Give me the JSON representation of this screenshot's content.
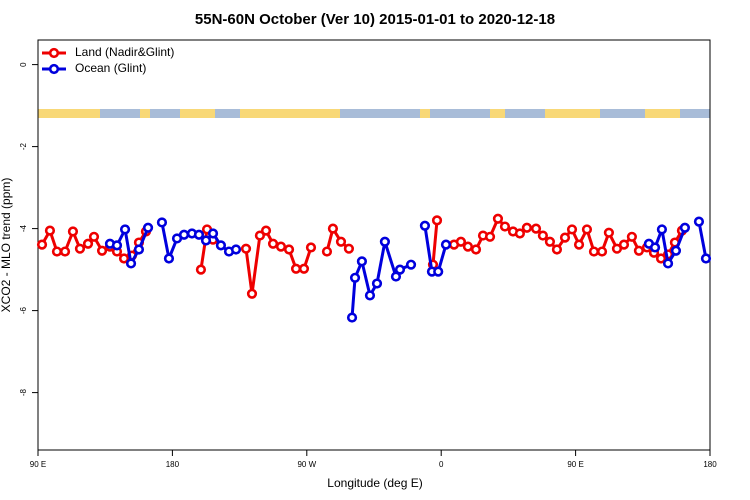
{
  "chart_data": {
    "type": "line",
    "title": "55N-60N October (Ver 10)   2015-01-01 to 2020-12-18",
    "x_label": "Longitude (deg E)",
    "y_label": "XCO2 - MLO trend (ppm)",
    "xlim": [
      90,
      540
    ],
    "ylim": [
      -9.4,
      0.6
    ],
    "xticks": [
      {
        "value": 90,
        "label": "90 E"
      },
      180,
      {
        "value": 270,
        "label": "90 W"
      },
      {
        "value": 360,
        "label": "0"
      },
      {
        "value": 450,
        "label": "90 E"
      },
      {
        "value": 540,
        "label": "180"
      }
    ],
    "yticks": [
      0,
      -2,
      -4,
      -6,
      -8
    ],
    "legend": "top-left",
    "series": [
      {
        "name": "Land (Nadir&Glint)",
        "color": "#ee0000",
        "x": [
          92.7,
          98.0,
          102.7,
          108.1,
          113.4,
          118.1,
          123.5,
          127.5,
          132.9,
          138.2,
          142.9,
          147.6,
          152.9,
          157.6,
          162.3,
          null,
          199.1,
          203.2,
          207.2,
          null,
          229.3,
          233.3,
          238.6,
          242.7,
          247.4,
          252.7,
          258.1,
          262.8,
          268.1,
          272.8,
          null,
          283.5,
          287.5,
          292.9,
          298.2,
          null,
          354.5,
          357.2,
          null,
          368.6,
          373.2,
          377.9,
          383.3,
          388.0,
          392.7,
          398.0,
          402.7,
          408.1,
          412.7,
          417.4,
          423.5,
          428.1,
          432.8,
          437.5,
          442.9,
          447.6,
          452.3,
          457.6,
          462.3,
          467.7,
          472.3,
          477.7,
          482.4,
          487.7,
          492.4,
          497.8,
          502.5,
          507.2,
          511.9,
          516.5,
          521.2
        ],
        "values": [
          -4.39,
          -4.05,
          -4.56,
          -4.56,
          -4.07,
          -4.49,
          -4.37,
          -4.2,
          -4.54,
          -4.44,
          -4.56,
          -4.73,
          -4.66,
          -4.34,
          -4.07,
          null,
          -5.0,
          -4.02,
          -4.27,
          null,
          -4.49,
          -5.59,
          -4.17,
          -4.05,
          -4.37,
          -4.44,
          -4.51,
          -4.98,
          -4.98,
          -4.46,
          null,
          -4.56,
          -4.0,
          -4.32,
          -4.49,
          null,
          -4.88,
          -3.8,
          null,
          -4.39,
          -4.32,
          -4.44,
          -4.51,
          -4.17,
          -4.2,
          -3.76,
          -3.95,
          -4.07,
          -4.12,
          -3.98,
          -4.0,
          -4.17,
          -4.32,
          -4.51,
          -4.22,
          -4.02,
          -4.39,
          -4.02,
          -4.56,
          -4.56,
          -4.1,
          -4.49,
          -4.39,
          -4.2,
          -4.54,
          -4.46,
          -4.59,
          -4.73,
          -4.63,
          -4.34,
          -4.05
        ]
      },
      {
        "name": "Ocean (Glint)",
        "color": "#0000dd",
        "x": [
          138.2,
          142.9,
          148.3,
          152.3,
          157.6,
          163.7,
          null,
          173.0,
          177.7,
          183.1,
          187.8,
          193.1,
          197.8,
          202.5,
          207.2,
          212.5,
          217.9,
          222.6,
          null,
          300.3,
          302.3,
          306.9,
          312.3,
          317.0,
          322.3,
          329.7,
          332.4,
          339.8,
          null,
          349.1,
          353.8,
          358.0,
          363.2,
          null,
          499.1,
          503.2,
          507.8,
          511.9,
          517.2,
          523.2,
          null,
          532.6,
          537.3
        ],
        "values": [
          -4.37,
          -4.41,
          -4.02,
          -4.85,
          -4.51,
          -3.98,
          null,
          -3.85,
          -4.73,
          -4.24,
          -4.15,
          -4.12,
          -4.15,
          -4.29,
          -4.12,
          -4.41,
          -4.56,
          -4.51,
          null,
          -6.17,
          -5.2,
          -4.8,
          -5.63,
          -5.34,
          -4.32,
          -5.17,
          -5.0,
          -4.88,
          null,
          -3.93,
          -5.05,
          -5.05,
          -4.39,
          null,
          -4.37,
          -4.46,
          -4.02,
          -4.85,
          -4.54,
          -3.98,
          null,
          -3.83,
          -4.73
        ]
      }
    ]
  }
}
